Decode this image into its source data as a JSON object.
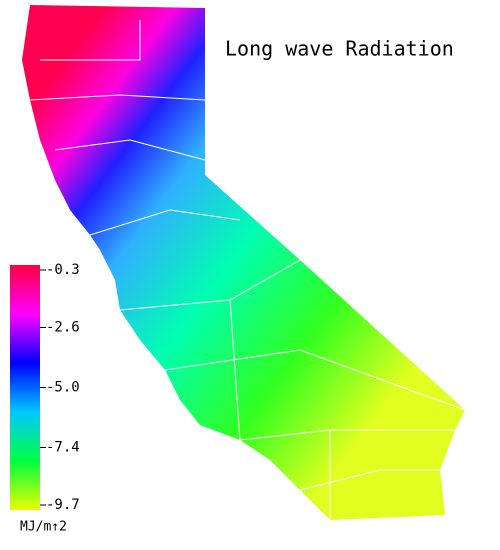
{
  "title": "Long wave Radiation",
  "colorbar": {
    "lim": [
      -9.7,
      -0.3
    ],
    "ticks": [
      -0.3,
      -2.6,
      {
        "value": -5,
        "label": "-5.0"
      },
      -7.4,
      -9.7
    ],
    "label": "MJ/m↑2",
    "colors": [
      "#ff0040",
      "#ff00ff",
      "#0000ff",
      "#00c8ff",
      "#00ff40",
      "#e8ff00"
    ]
  }
}
